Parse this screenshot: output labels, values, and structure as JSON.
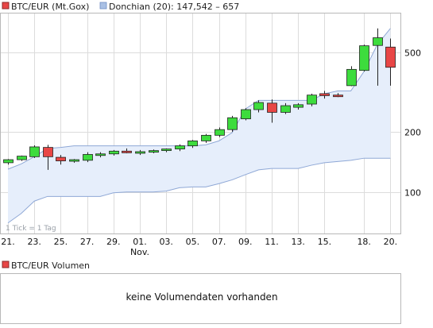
{
  "colors": {
    "up": "#3ddc3d",
    "down": "#e84646",
    "band_fill": "#e6eefb",
    "band_line": "#8fa8d6",
    "grid": "#dcdcdc",
    "frame": "#b8b8b8"
  },
  "legend": {
    "series_label": "BTC/EUR (Mt.Gox)",
    "indicator_label": "Donchian (20): 147,542 – 657"
  },
  "note": "1 Tick = 1 Tag",
  "chart_data": {
    "type": "candlestick",
    "y_scale": "log",
    "ylim": [
      62,
      780
    ],
    "y_ticks": [
      100,
      200,
      500
    ],
    "x_tick_labels": [
      "21.",
      "23.",
      "25.",
      "27.",
      "29.",
      "01.",
      "03.",
      "05.",
      "07.",
      "09.",
      "11.",
      "13.",
      "15.",
      "18.",
      "20."
    ],
    "x_tick_positions": [
      0,
      2,
      4,
      6,
      8,
      10,
      12,
      14,
      16,
      18,
      20,
      22,
      24,
      27,
      29
    ],
    "x_month_label": "Nov.",
    "candles": [
      {
        "o": 140,
        "h": 146,
        "l": 137,
        "c": 145
      },
      {
        "o": 145,
        "h": 152,
        "l": 143,
        "c": 151
      },
      {
        "o": 150,
        "h": 171,
        "l": 148,
        "c": 168
      },
      {
        "o": 167,
        "h": 172,
        "l": 129,
        "c": 150
      },
      {
        "o": 149,
        "h": 153,
        "l": 137,
        "c": 143
      },
      {
        "o": 144,
        "h": 146,
        "l": 140,
        "c": 145
      },
      {
        "o": 144,
        "h": 158,
        "l": 141,
        "c": 154
      },
      {
        "o": 153,
        "h": 158,
        "l": 149,
        "c": 155
      },
      {
        "o": 155,
        "h": 162,
        "l": 152,
        "c": 160
      },
      {
        "o": 160,
        "h": 165,
        "l": 156,
        "c": 157
      },
      {
        "o": 157,
        "h": 162,
        "l": 153,
        "c": 159
      },
      {
        "o": 159,
        "h": 163,
        "l": 156,
        "c": 161
      },
      {
        "o": 161,
        "h": 165,
        "l": 158,
        "c": 164
      },
      {
        "o": 164,
        "h": 173,
        "l": 160,
        "c": 170
      },
      {
        "o": 170,
        "h": 182,
        "l": 166,
        "c": 180
      },
      {
        "o": 180,
        "h": 195,
        "l": 176,
        "c": 192
      },
      {
        "o": 192,
        "h": 210,
        "l": 188,
        "c": 205
      },
      {
        "o": 205,
        "h": 240,
        "l": 200,
        "c": 235
      },
      {
        "o": 232,
        "h": 262,
        "l": 228,
        "c": 258
      },
      {
        "o": 258,
        "h": 287,
        "l": 250,
        "c": 280
      },
      {
        "o": 278,
        "h": 290,
        "l": 222,
        "c": 250
      },
      {
        "o": 250,
        "h": 278,
        "l": 245,
        "c": 270
      },
      {
        "o": 265,
        "h": 278,
        "l": 258,
        "c": 273
      },
      {
        "o": 275,
        "h": 310,
        "l": 268,
        "c": 305
      },
      {
        "o": 310,
        "h": 320,
        "l": 293,
        "c": 303
      },
      {
        "o": 305,
        "h": 312,
        "l": 298,
        "c": 301
      },
      {
        "o": 340,
        "h": 425,
        "l": 338,
        "c": 410
      },
      {
        "o": 405,
        "h": 545,
        "l": 400,
        "c": 538
      },
      {
        "o": 540,
        "h": 657,
        "l": 340,
        "c": 590
      },
      {
        "o": 530,
        "h": 585,
        "l": 340,
        "c": 420
      }
    ],
    "donchian_upper": [
      130,
      138,
      150,
      165,
      167,
      170,
      170,
      170,
      170,
      170,
      170,
      170,
      170,
      170,
      170,
      172,
      180,
      198,
      260,
      287,
      287,
      287,
      287,
      287,
      310,
      320,
      320,
      400,
      545,
      657
    ],
    "donchian_lower": [
      70,
      78,
      90,
      95,
      95,
      95,
      95,
      95,
      99,
      100,
      100,
      100,
      101,
      105,
      106,
      106,
      110,
      115,
      122,
      129,
      131,
      131,
      131,
      136,
      140,
      142,
      144,
      147.5,
      147.5,
      147.5
    ]
  },
  "volume": {
    "label": "BTC/EUR Volumen",
    "message": "keine Volumendaten vorhanden"
  }
}
